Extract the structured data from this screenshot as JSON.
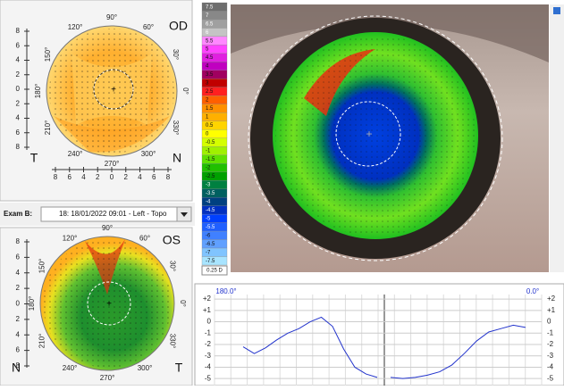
{
  "od_map": {
    "eye": "OD",
    "left_label": "T",
    "right_label": "N",
    "angles": [
      "90°",
      "60°",
      "30°",
      "0°",
      "330°",
      "300°",
      "270°",
      "240°",
      "210°",
      "180°",
      "150°",
      "120°"
    ],
    "scale": [
      8,
      6,
      4,
      2,
      0,
      2,
      4,
      6,
      8
    ],
    "bottom_scale": [
      8,
      6,
      4,
      2,
      0,
      2,
      4,
      6,
      8
    ]
  },
  "exam_selector": {
    "label": "Exam B:",
    "value": "18: 18/01/2022 09:01 - Left - Topo"
  },
  "os_map": {
    "eye": "OS",
    "left_label": "N",
    "right_label": "T",
    "angles": [
      "90°",
      "60°",
      "30°",
      "0°",
      "330°",
      "300°",
      "270°",
      "240°",
      "210°",
      "180°",
      "150°",
      "120°"
    ],
    "scale": [
      8,
      6,
      4,
      2,
      0,
      2,
      4,
      6,
      8
    ]
  },
  "color_scale": {
    "steps": [
      {
        "label": "7.5",
        "color": "#6e6e6e"
      },
      {
        "label": "7",
        "color": "#888888"
      },
      {
        "label": "6.5",
        "color": "#a0a0a0"
      },
      {
        "label": "6",
        "color": "#c4c4c4"
      },
      {
        "label": "5.5",
        "color": "#ff88ff"
      },
      {
        "label": "5",
        "color": "#ff44ff"
      },
      {
        "label": "4.5",
        "color": "#e020e0"
      },
      {
        "label": "4",
        "color": "#c000c0"
      },
      {
        "label": "3.5",
        "color": "#a00060"
      },
      {
        "label": "3",
        "color": "#c00000"
      },
      {
        "label": "2.5",
        "color": "#ff2020"
      },
      {
        "label": "2",
        "color": "#ff6000"
      },
      {
        "label": "1.5",
        "color": "#ff9000"
      },
      {
        "label": "1",
        "color": "#ffb000"
      },
      {
        "label": "0.5",
        "color": "#ffd400"
      },
      {
        "label": "0",
        "color": "#ffff00"
      },
      {
        "label": "-0.5",
        "color": "#d4ff00"
      },
      {
        "label": "-1",
        "color": "#a0f000"
      },
      {
        "label": "-1.5",
        "color": "#60e000"
      },
      {
        "label": "-2",
        "color": "#20c000"
      },
      {
        "label": "-2.5",
        "color": "#00a000"
      },
      {
        "label": "-3",
        "color": "#008040"
      },
      {
        "label": "-3.5",
        "color": "#006060"
      },
      {
        "label": "-4",
        "color": "#004080"
      },
      {
        "label": "-4.5",
        "color": "#0030c0"
      },
      {
        "label": "-5",
        "color": "#0040ff"
      },
      {
        "label": "-5.5",
        "color": "#2060ff"
      },
      {
        "label": "-6",
        "color": "#4080ff"
      },
      {
        "label": "-6.5",
        "color": "#60a0ff"
      },
      {
        "label": "-7",
        "color": "#80c4ff"
      },
      {
        "label": "-7.5",
        "color": "#a8e4ff"
      }
    ],
    "unit": "0.25 D"
  },
  "profile": {
    "left_label": "180.0°",
    "right_label": "0.0°",
    "ylim": [
      -5.3,
      2.4
    ],
    "yticks": [
      {
        "value": 2,
        "label": "+2"
      },
      {
        "value": 1,
        "label": "+1"
      },
      0,
      -1,
      -2,
      -3,
      -4,
      -5
    ],
    "left_values": [
      -2.2,
      -2.8,
      -2.3,
      -1.6,
      -1.0,
      -0.6,
      0.0,
      0.4,
      -0.4,
      -2.4,
      -4.0,
      -4.6,
      -4.9
    ],
    "right_values": [
      -4.9,
      -5.0,
      -4.9,
      -4.7,
      -4.4,
      -3.8,
      -2.8,
      -1.7,
      -0.9,
      -0.6,
      -0.3,
      -0.5
    ],
    "color": "#2233cc"
  }
}
